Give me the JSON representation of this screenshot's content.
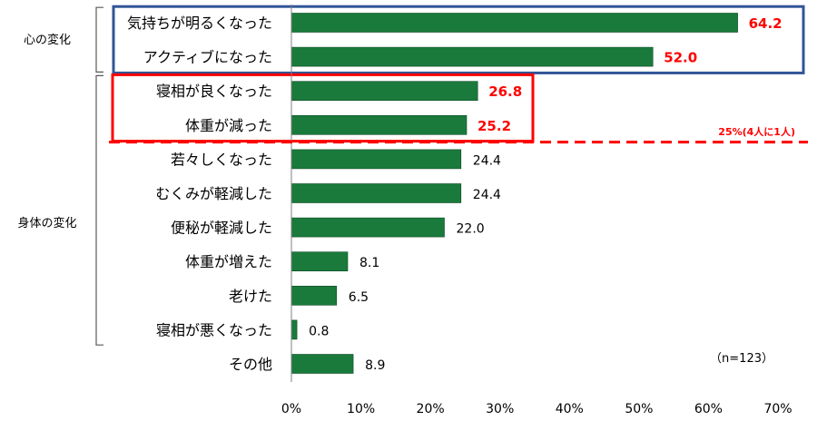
{
  "chart_data": {
    "type": "bar",
    "orientation": "horizontal",
    "categories": [
      "気持ちが明るくなった",
      "アクティブになった",
      "寝相が良くなった",
      "体重が減った",
      "若々しくなった",
      "むくみが軽減した",
      "便秘が軽減した",
      "体重が増えた",
      "老けた",
      "寝相が悪くなった",
      "その他"
    ],
    "values": [
      64.2,
      52.0,
      26.8,
      25.2,
      24.4,
      24.4,
      22.0,
      8.1,
      6.5,
      0.8,
      8.9
    ],
    "value_labels": [
      "64.2",
      "52.0",
      "26.8",
      "25.2",
      "24.4",
      "24.4",
      "22.0",
      "8.1",
      "6.5",
      "0.8",
      "8.9"
    ],
    "highlighted": [
      true,
      true,
      true,
      true,
      false,
      false,
      false,
      false,
      false,
      false,
      false
    ],
    "bar_color": "#1a7a3c",
    "highlight_label_color": "#ff0000",
    "xlim": [
      0,
      70
    ],
    "x_ticks": [
      "0%",
      "10%",
      "20%",
      "30%",
      "40%",
      "50%",
      "60%",
      "70%"
    ],
    "groups": [
      {
        "label": "心の変化",
        "start": 0,
        "end": 1
      },
      {
        "label": "身体の変化",
        "start": 2,
        "end": 9
      }
    ],
    "highlight_boxes": [
      {
        "start": 0,
        "end": 1,
        "color": "#2f5597"
      },
      {
        "start": 2,
        "end": 3,
        "color": "#ff0000"
      }
    ],
    "reference_line": {
      "label": "25%(4人に1人)",
      "color": "#ff0000"
    },
    "note": "（n=123）",
    "grid": false
  }
}
